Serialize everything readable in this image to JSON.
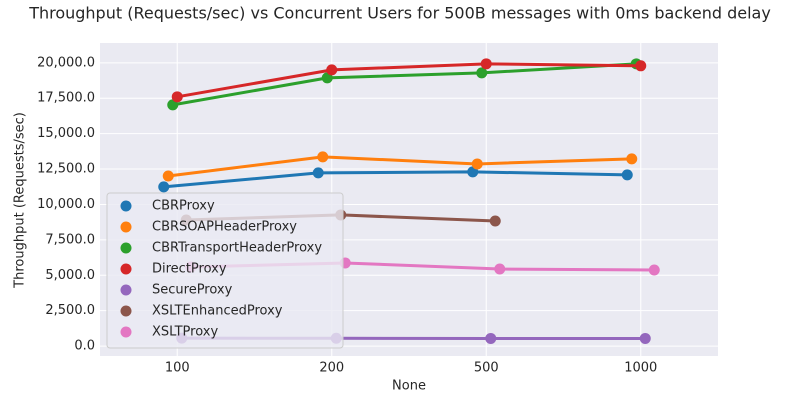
{
  "chart_data": {
    "type": "line",
    "title": "Throughput (Requests/sec) vs Concurrent Users for 500B messages with 0ms backend delay",
    "xlabel": "None",
    "ylabel": "Throughput (Requests/sec)",
    "categories": [
      "100",
      "200",
      "500",
      "1000"
    ],
    "ylim": [
      -700,
      21400
    ],
    "yticks": [
      {
        "value": 0,
        "label": "0.0"
      },
      {
        "value": 2500,
        "label": "2,500.0"
      },
      {
        "value": 5000,
        "label": "5,000.0"
      },
      {
        "value": 7500,
        "label": "7,500.0"
      },
      {
        "value": 10000,
        "label": "10,000.0"
      },
      {
        "value": 12500,
        "label": "12,500.0"
      },
      {
        "value": 15000,
        "label": "15,000.0"
      },
      {
        "value": 17500,
        "label": "17,500.0"
      },
      {
        "value": 20000,
        "label": "20,000.0"
      }
    ],
    "grid": true,
    "legend": "lower left",
    "series": [
      {
        "name": "CBRProxy",
        "color": "#1f77b4",
        "values": [
          11240,
          12230,
          12300,
          12090
        ]
      },
      {
        "name": "CBRSOAPHeaderProxy",
        "color": "#ff7f0e",
        "values": [
          12010,
          13360,
          12860,
          13220
        ]
      },
      {
        "name": "CBRTransportHeaderProxy",
        "color": "#2ca02c",
        "values": [
          17030,
          18940,
          19290,
          19930
        ]
      },
      {
        "name": "DirectProxy",
        "color": "#d62728",
        "values": [
          17600,
          19500,
          19930,
          19790
        ]
      },
      {
        "name": "SecureProxy",
        "color": "#9467bd",
        "values": [
          560,
          550,
          540,
          540
        ]
      },
      {
        "name": "XSLTEnhancedProxy",
        "color": "#8c564b",
        "values": [
          8900,
          9260,
          8830,
          null
        ]
      },
      {
        "name": "XSLTProxy",
        "color": "#e377c2",
        "values": [
          5580,
          5870,
          5440,
          5370
        ]
      }
    ]
  }
}
